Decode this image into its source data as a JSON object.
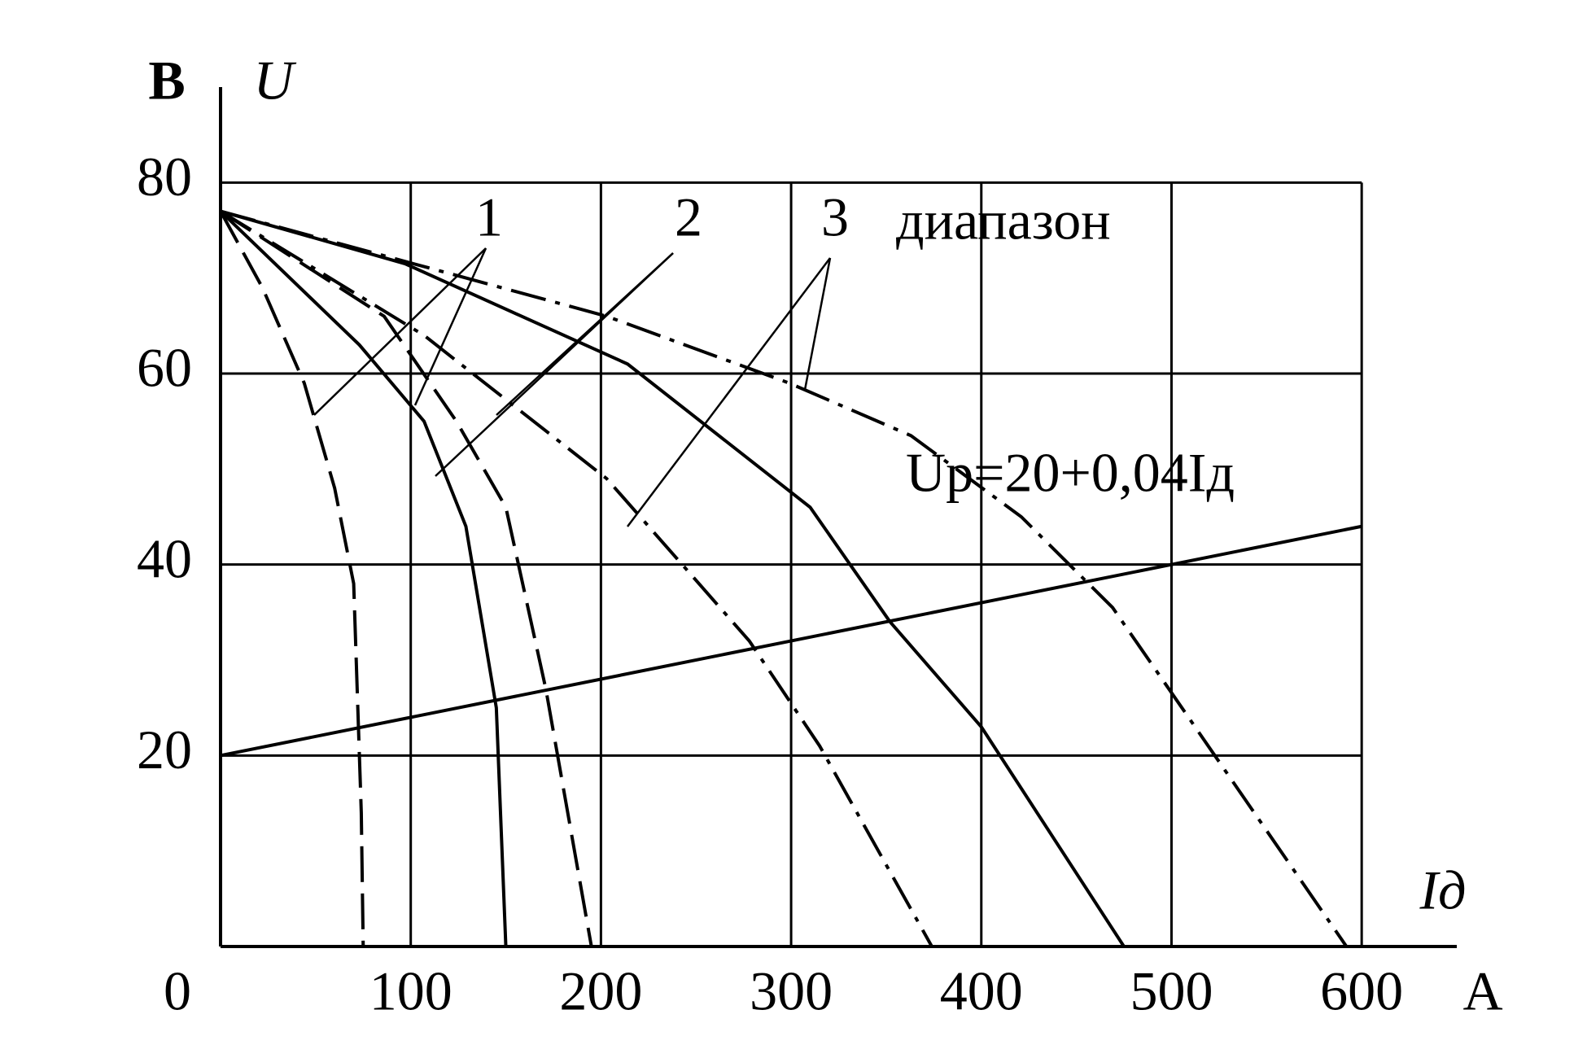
{
  "chart_data": {
    "type": "line",
    "y_label": "U",
    "y_unit": "В",
    "x_label": "Iд",
    "x_unit": "А",
    "annotations": [
      "1",
      "2",
      "3",
      "диапазон",
      "Uр=20+0,04Iд"
    ],
    "xlim": [
      0,
      650
    ],
    "ylim": [
      0,
      90
    ],
    "xticks": [
      0,
      100,
      200,
      300,
      400,
      500,
      600
    ],
    "yticks": [
      20,
      40,
      60,
      80
    ],
    "grid": true,
    "series": [
      {
        "color": "#000000",
        "dash": "dashed",
        "x": [
          0,
          22,
          44,
          60,
          70,
          74,
          75
        ],
        "values": [
          77,
          69,
          59,
          48,
          38,
          14,
          0
        ]
      },
      {
        "color": "#000000",
        "dash": "solid",
        "x": [
          0,
          73,
          107,
          129,
          145,
          150
        ],
        "values": [
          77,
          63,
          55,
          44,
          25,
          0
        ]
      },
      {
        "color": "#000000",
        "dash": "dashed",
        "x": [
          0,
          86,
          124,
          150,
          171,
          195
        ],
        "values": [
          77,
          66,
          55,
          46,
          27,
          0
        ]
      },
      {
        "color": "#000000",
        "dash": "dashdot",
        "x": [
          0,
          107,
          203,
          278,
          315,
          374
        ],
        "values": [
          77,
          64,
          49,
          32,
          21,
          0
        ]
      },
      {
        "color": "#000000",
        "dash": "solid",
        "x": [
          0,
          97,
          214,
          310,
          352,
          400,
          475
        ],
        "values": [
          77,
          71.5,
          61,
          46,
          34,
          23,
          0
        ]
      },
      {
        "color": "#000000",
        "dash": "dashdot",
        "x": [
          0,
          203,
          299,
          363,
          421,
          469,
          502,
          592
        ],
        "values": [
          77,
          66,
          59,
          53.5,
          45,
          35.5,
          26,
          0
        ]
      },
      {
        "color": "#000000",
        "dash": "solid",
        "x": [
          0,
          600
        ],
        "values": [
          20,
          44
        ]
      }
    ]
  }
}
